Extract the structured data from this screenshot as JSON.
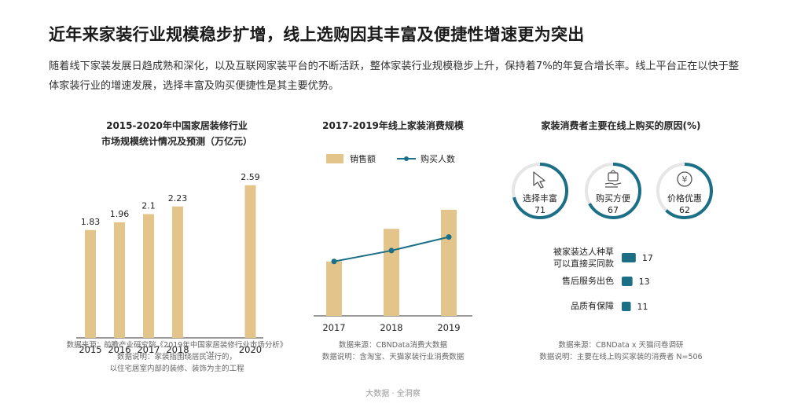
{
  "header": {
    "title": "近年来家装行业规模稳步扩增，线上选购因其丰富及便捷性增速更为突出",
    "paragraph": "随着线下家装发展日趋成熟和深化，以及互联网家装平台的不断活跃，整体家装行业规模稳步上升，保持着7%的年复合增长率。线上平台正在以快于整体家装行业的增速发展，选择丰富及购买便捷性是其主要优势。"
  },
  "chart1": {
    "title_line1": "2015-2020年中国家居装修行业",
    "title_line2": "市场规模统计情况及预测（万亿元）",
    "source_line1": "数据来源：前瞻产业研究院《2019年中国家居装修行业市场分析》",
    "source_line2": "数据说明：家装指围绕居民进行的，",
    "source_line3": "以住宅居室内部的装修、装饰为主的工程"
  },
  "chart2": {
    "title": "2017-2019年线上家装消费规模",
    "legend_bar": "销售额",
    "legend_line": "购买人数",
    "source_line1": "数据来源：CBNData消费大数据",
    "source_line2": "数据说明：含淘宝、天猫家装行业消费数据"
  },
  "chart3": {
    "title": "家装消费者主要在线上购买的原因(%)",
    "source_line1": "数据来源：CBNData x 天猫问卷调研",
    "source_line2": "数据说明：主要在线上购买家装的消费者 N=506"
  },
  "footer": "大数据 · 全洞察",
  "colors": {
    "bar": "#e3c48a",
    "teal": "#1b6f86",
    "ring_bg": "#e6e6e6"
  },
  "chart_data": [
    {
      "type": "bar",
      "categories": [
        "2015",
        "2016",
        "2017",
        "2018",
        "…",
        "2020"
      ],
      "values": [
        1.83,
        1.96,
        2.1,
        2.23,
        null,
        2.59
      ],
      "value_labels": [
        "1.83",
        "1.96",
        "2.1",
        "2.23",
        "",
        "2.59"
      ],
      "ylim": [
        0,
        2.8
      ]
    },
    {
      "type": "bar",
      "categories": [
        "2017",
        "2018",
        "2019"
      ],
      "series": [
        {
          "name": "销售额",
          "type": "bar",
          "values": [
            1.0,
            1.6,
            1.95
          ]
        },
        {
          "name": "购买人数",
          "type": "line",
          "values": [
            1.0,
            1.2,
            1.45
          ]
        }
      ],
      "ylim": [
        0,
        2.6
      ]
    },
    {
      "type": "bar",
      "circles": [
        {
          "label": "选择丰富",
          "value": 71,
          "icon": "cursor-icon"
        },
        {
          "label": "购买方便",
          "value": 67,
          "icon": "hand-bag-icon"
        },
        {
          "label": "价格优惠",
          "value": 62,
          "icon": "yen-coin-icon"
        }
      ],
      "bars": [
        {
          "label_line1": "被家装达人种草",
          "label_line2": "可以直接买同款",
          "value": 17
        },
        {
          "label_line1": "售后服务出色",
          "label_line2": "",
          "value": 13
        },
        {
          "label_line1": "品质有保障",
          "label_line2": "",
          "value": 11
        }
      ]
    }
  ]
}
